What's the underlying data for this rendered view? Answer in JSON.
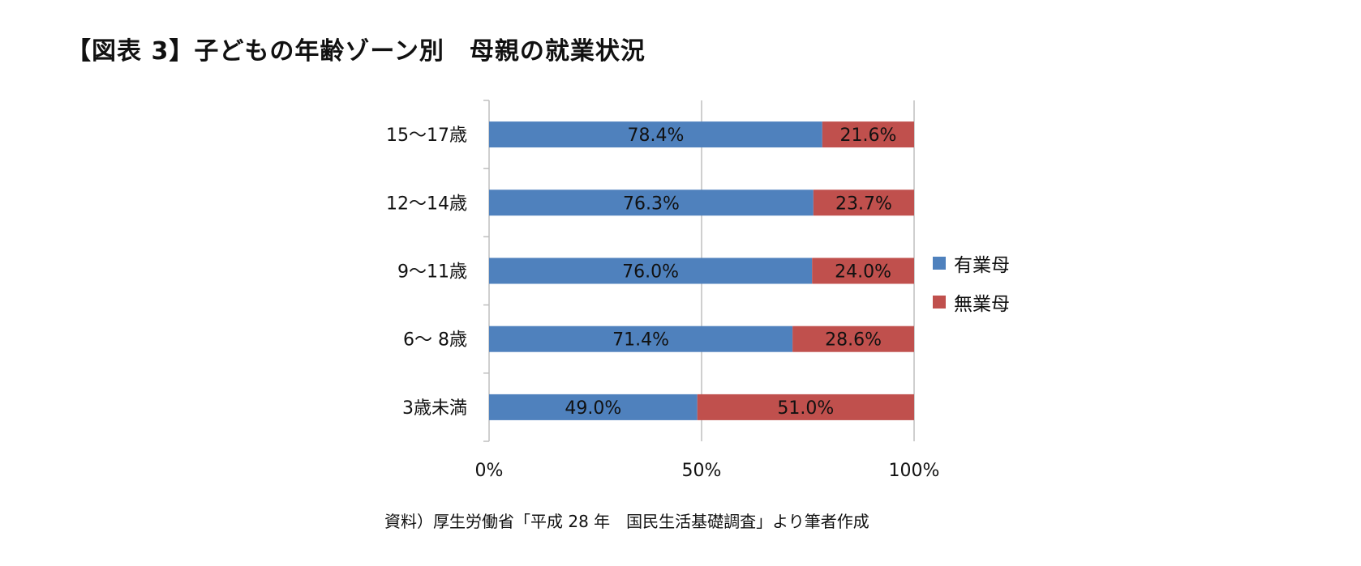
{
  "figure": {
    "title": "【図表 3】子どもの年齢ゾーン別　母親の就業状況",
    "source": "資料）厚生労働省「平成 28 年　国民生活基礎調査」より筆者作成"
  },
  "colors": {
    "employed": "#4f81bd",
    "unemployed": "#c0504d",
    "axis": "#bfbfbf"
  },
  "chart_data": {
    "type": "bar",
    "orientation": "horizontal",
    "stacked": true,
    "categories": [
      "15〜17歳",
      "12〜14歳",
      "9〜11歳",
      "6〜 8歳",
      "3歳未満"
    ],
    "series": [
      {
        "name": "有業母",
        "values": [
          78.4,
          76.3,
          76.0,
          71.4,
          49.0
        ],
        "labels": [
          "78.4%",
          "76.3%",
          "76.0%",
          "71.4%",
          "49.0%"
        ]
      },
      {
        "name": "無業母",
        "values": [
          21.6,
          23.7,
          24.0,
          28.6,
          51.0
        ],
        "labels": [
          "21.6%",
          "23.7%",
          "24.0%",
          "28.6%",
          "51.0%"
        ]
      }
    ],
    "xlim": [
      0,
      100
    ],
    "xticks": [
      "0%",
      "50%",
      "100%"
    ],
    "grid": "vertical",
    "legend_position": "right"
  }
}
